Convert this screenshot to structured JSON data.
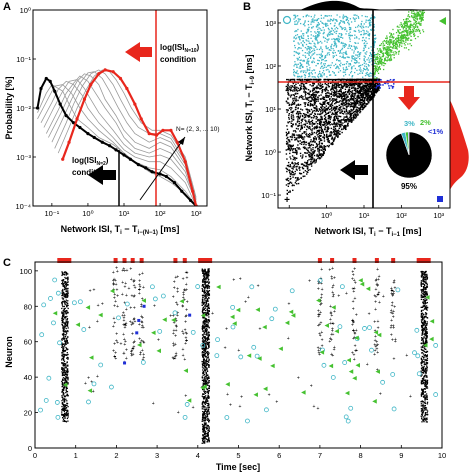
{
  "panels": {
    "A": {
      "letter": "A",
      "ylabel": "Probability [%]",
      "xlabel": "Network ISI, T",
      "xlabel_sub": "i",
      "xlabel_mid": " − T",
      "xlabel_sub2": "i−(N−1)",
      "xlabel_unit": " [ms]",
      "yticks": [
        "10⁻⁴",
        "10⁻³",
        "10⁻²",
        "10⁻¹",
        "10⁰"
      ],
      "xticks": [
        "10⁻¹",
        "10⁰",
        "10¹",
        "10²",
        "10³"
      ],
      "cond_top_line1": "log(ISI",
      "cond_top_sub": "N=10",
      "cond_top_line2": "condition",
      "cond_bot_line1": "log(ISI",
      "cond_bot_sub": "N=2",
      "cond_bot_line2": "condition",
      "n_label": "N= (2, 3, ... 10)"
    },
    "B": {
      "letter": "B",
      "ylabel": "Network ISI, T",
      "ylabel_sub": "i",
      "ylabel_mid": " − T",
      "ylabel_sub2": "i−9",
      "ylabel_unit": " [ms]",
      "xlabel": "Network ISI, T",
      "xlabel_sub": "i",
      "xlabel_mid": " − T",
      "xlabel_sub2": "i−1",
      "xlabel_unit": " [ms]",
      "yticks": [
        "10⁻¹",
        "10⁰",
        "10¹",
        "10²",
        "10³"
      ],
      "xticks": [
        "10⁰",
        "10¹",
        "10²",
        "10³"
      ],
      "pie_labels": {
        "cyan": "3%",
        "green": "2%",
        "blue": "<1%",
        "black": "95%"
      }
    },
    "C": {
      "letter": "C",
      "ylabel": "Neuron",
      "xlabel": "Time [sec]",
      "yticks": [
        "0",
        "20",
        "40",
        "60",
        "80",
        "100"
      ],
      "xticks": [
        "0",
        "1",
        "2",
        "3",
        "4",
        "5",
        "6",
        "7",
        "8",
        "9",
        "10"
      ]
    }
  },
  "colors": {
    "red": "#e8271d",
    "cyan": "#3fb6c6",
    "green": "#45c130",
    "blue": "#1f2fd6",
    "black": "#000000",
    "gray": "#9a9a9a"
  },
  "chart_data": [
    {
      "type": "line",
      "panel": "A",
      "xscale": "log",
      "yscale": "log",
      "xlim": [
        0.03,
        2000
      ],
      "ylim": [
        0.0001,
        1
      ],
      "series": [
        {
          "x": [
            0.04,
            0.07,
            0.1,
            0.2,
            0.3,
            0.5,
            1,
            2,
            5,
            10,
            20,
            50,
            100,
            200,
            500,
            1000
          ],
          "y": [
            0.008,
            0.02,
            0.03,
            0.022,
            0.012,
            0.006,
            0.004,
            0.0025,
            0.0018,
            0.0012,
            0.0008,
            0.0005,
            0.0004,
            0.0003,
            0.00018,
            0.0001
          ]
        },
        {
          "x": [
            0.04,
            0.08,
            0.12,
            0.2,
            0.35,
            0.6,
            1,
            2,
            5,
            10,
            20,
            50,
            100,
            200,
            500,
            1000
          ],
          "y": [
            0.006,
            0.016,
            0.028,
            0.03,
            0.02,
            0.01,
            0.006,
            0.0035,
            0.002,
            0.0012,
            0.0008,
            0.0006,
            0.00055,
            0.0004,
            0.0002,
            0.0001
          ]
        },
        {
          "x": [
            0.05,
            0.1,
            0.15,
            0.25,
            0.4,
            0.7,
            1,
            2,
            5,
            10,
            20,
            50,
            100,
            200,
            500,
            1000
          ],
          "y": [
            0.005,
            0.013,
            0.024,
            0.035,
            0.03,
            0.018,
            0.01,
            0.005,
            0.0025,
            0.0014,
            0.001,
            0.0008,
            0.0008,
            0.0006,
            0.0003,
            0.0001
          ]
        },
        {
          "x": [
            0.06,
            0.12,
            0.2,
            0.3,
            0.5,
            0.8,
            1.2,
            2,
            5,
            10,
            20,
            50,
            100,
            200,
            500,
            1000
          ],
          "y": [
            0.004,
            0.011,
            0.022,
            0.035,
            0.038,
            0.025,
            0.015,
            0.008,
            0.0035,
            0.0018,
            0.0012,
            0.001,
            0.0011,
            0.0009,
            0.0004,
            0.00012
          ]
        },
        {
          "x": [
            0.07,
            0.15,
            0.25,
            0.4,
            0.6,
            1,
            1.5,
            3,
            6,
            10,
            20,
            50,
            100,
            200,
            500,
            1000
          ],
          "y": [
            0.003,
            0.009,
            0.02,
            0.032,
            0.045,
            0.035,
            0.022,
            0.01,
            0.005,
            0.0025,
            0.0015,
            0.0012,
            0.0015,
            0.0012,
            0.0005,
            0.00012
          ]
        },
        {
          "x": [
            0.08,
            0.18,
            0.3,
            0.5,
            0.8,
            1.2,
            2,
            3,
            6,
            10,
            20,
            50,
            100,
            200,
            500,
            1000
          ],
          "y": [
            0.0025,
            0.008,
            0.018,
            0.035,
            0.05,
            0.045,
            0.03,
            0.015,
            0.007,
            0.0035,
            0.002,
            0.0015,
            0.002,
            0.0016,
            0.0006,
            0.00013
          ]
        },
        {
          "x": [
            0.1,
            0.2,
            0.35,
            0.6,
            1,
            1.5,
            2.5,
            4,
            7,
            12,
            20,
            50,
            100,
            200,
            500,
            1000
          ],
          "y": [
            0.002,
            0.006,
            0.015,
            0.032,
            0.052,
            0.055,
            0.04,
            0.022,
            0.01,
            0.005,
            0.003,
            0.002,
            0.0025,
            0.002,
            0.0007,
            0.00013
          ]
        },
        {
          "x": [
            0.12,
            0.25,
            0.4,
            0.7,
            1.2,
            2,
            3,
            5,
            8,
            14,
            25,
            50,
            100,
            200,
            500,
            1000
          ],
          "y": [
            0.0015,
            0.005,
            0.012,
            0.028,
            0.05,
            0.06,
            0.05,
            0.03,
            0.015,
            0.007,
            0.004,
            0.003,
            0.003,
            0.0024,
            0.0008,
            0.00014
          ]
        },
        {
          "x": [
            0.15,
            0.3,
            0.5,
            0.9,
            1.5,
            2.5,
            4,
            6,
            10,
            16,
            30,
            60,
            100,
            200,
            500,
            1000
          ],
          "y": [
            0.0012,
            0.004,
            0.01,
            0.024,
            0.045,
            0.06,
            0.055,
            0.038,
            0.02,
            0.01,
            0.005,
            0.0035,
            0.0035,
            0.0028,
            0.001,
            0.00015
          ]
        },
        {
          "name": "N=2",
          "highlight": "black",
          "x": [
            0.04,
            0.05,
            0.07,
            0.09,
            0.12,
            0.17,
            0.25,
            0.4,
            0.6,
            1,
            1.5,
            2.5,
            4,
            6,
            10,
            15,
            25,
            40,
            60,
            100,
            150,
            250,
            400,
            700,
            1000
          ],
          "y": [
            0.01,
            0.025,
            0.04,
            0.035,
            0.022,
            0.012,
            0.007,
            0.005,
            0.004,
            0.003,
            0.0025,
            0.002,
            0.0017,
            0.0014,
            0.0011,
            0.0009,
            0.0007,
            0.0006,
            0.0005,
            0.00045,
            0.0004,
            0.0003,
            0.0002,
            0.00013,
            0.0001
          ]
        },
        {
          "name": "N=10",
          "highlight": "red",
          "x": [
            0.2,
            0.3,
            0.5,
            0.8,
            1.2,
            2,
            3,
            5,
            8,
            12,
            20,
            30,
            50,
            80,
            120,
            200,
            300,
            500,
            800,
            1000
          ],
          "y": [
            0.0009,
            0.002,
            0.006,
            0.015,
            0.03,
            0.05,
            0.06,
            0.055,
            0.04,
            0.025,
            0.012,
            0.006,
            0.003,
            0.0028,
            0.0035,
            0.0035,
            0.002,
            0.0008,
            0.0002,
            0.0001
          ]
        }
      ]
    },
    {
      "type": "scatter",
      "panel": "B",
      "xscale": "log",
      "yscale": "log",
      "xlim": [
        0.05,
        2000
      ],
      "ylim": [
        0.05,
        2000
      ],
      "thresholds": {
        "x": 20,
        "y": 50
      },
      "pie": [
        {
          "name": "black",
          "value": 95
        },
        {
          "name": "cyan",
          "value": 3
        },
        {
          "name": "green",
          "value": 2
        },
        {
          "name": "blue",
          "value": 0.5
        }
      ]
    },
    {
      "type": "scatter",
      "panel": "C",
      "xlim": [
        0,
        10
      ],
      "ylim": [
        0,
        105
      ],
      "burst_times": [
        0.72,
        4.18,
        9.55
      ],
      "red_markers": [
        0.72,
        1.98,
        2.2,
        2.4,
        2.62,
        3.45,
        3.68,
        4.18,
        7.0,
        7.3,
        7.85,
        8.4,
        8.8,
        9.55
      ]
    }
  ]
}
